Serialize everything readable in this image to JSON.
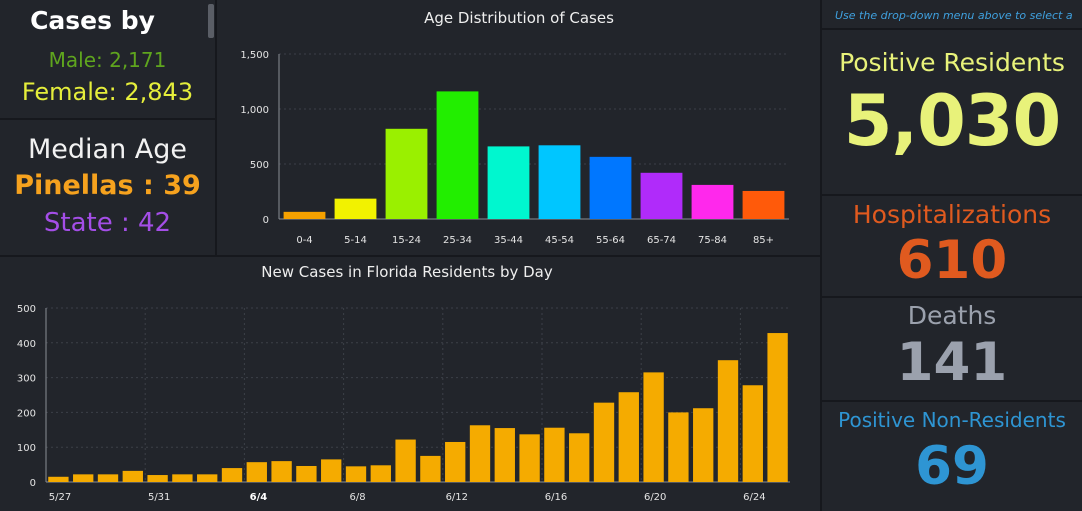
{
  "cases_by": {
    "title": "Cases by",
    "male": "Male: 2,171",
    "female": "Female: 2,843"
  },
  "median_age": {
    "title": "Median Age",
    "county": "Pinellas : 39",
    "state": "State : 42"
  },
  "right": {
    "instruction": "Use the drop-down menu above to select a",
    "positive_residents_label": "Positive Residents",
    "positive_residents_value": "5,030",
    "hospitalizations_label": "Hospitalizations",
    "hospitalizations_value": "610",
    "deaths_label": "Deaths",
    "deaths_value": "141",
    "non_residents_label": "Positive Non-Residents",
    "non_residents_value": "69"
  },
  "colors": {
    "male": "#5fa51e",
    "female": "#e5ee3b",
    "pinellas": "#f6a21e",
    "state": "#a44ee7",
    "positive": "#e8f27a",
    "hospital": "#e05a1f",
    "deaths": "#9ba1ad",
    "nonres": "#2e95d3",
    "daily_bar": "#f5ab00"
  },
  "chart_data": [
    {
      "type": "bar",
      "title": "Age Distribution of Cases",
      "categories": [
        "0-4",
        "5-14",
        "15-24",
        "25-34",
        "35-44",
        "45-54",
        "55-64",
        "65-74",
        "75-84",
        "85+"
      ],
      "values": [
        65,
        185,
        820,
        1160,
        660,
        670,
        565,
        420,
        310,
        255
      ],
      "colors": [
        "#f5a100",
        "#f2f200",
        "#9af000",
        "#22ee00",
        "#00f7cf",
        "#00c6ff",
        "#0077ff",
        "#b02bfa",
        "#ff28ec",
        "#ff5a0a"
      ],
      "yticks": [
        0,
        500,
        1000,
        1500
      ],
      "ytick_labels": [
        "0",
        "500",
        "1,000",
        "1,500"
      ],
      "ylim": [
        0,
        1500
      ],
      "grid": true
    },
    {
      "type": "bar",
      "title": "New Cases in Florida Residents by Day",
      "x": [
        "5/27",
        "5/28",
        "5/29",
        "5/30",
        "5/31",
        "6/1",
        "6/2",
        "6/3",
        "6/4",
        "6/5",
        "6/6",
        "6/7",
        "6/8",
        "6/9",
        "6/10",
        "6/11",
        "6/12",
        "6/13",
        "6/14",
        "6/15",
        "6/16",
        "6/17",
        "6/18",
        "6/19",
        "6/20",
        "6/21",
        "6/22",
        "6/23",
        "6/24",
        "6/25"
      ],
      "values": [
        15,
        22,
        22,
        32,
        20,
        22,
        22,
        40,
        57,
        60,
        46,
        65,
        45,
        48,
        122,
        75,
        115,
        163,
        155,
        137,
        156,
        140,
        228,
        258,
        315,
        200,
        212,
        350,
        278,
        428
      ],
      "xtick_labels": [
        "5/27",
        "5/31",
        "6/4",
        "6/8",
        "6/12",
        "6/16",
        "6/20",
        "6/24"
      ],
      "xtick_indices": [
        0,
        4,
        8,
        12,
        16,
        20,
        24,
        28
      ],
      "bold_tick": "6/4",
      "yticks": [
        0,
        100,
        200,
        300,
        400,
        500
      ],
      "ylim": [
        0,
        500
      ],
      "grid": true
    }
  ]
}
